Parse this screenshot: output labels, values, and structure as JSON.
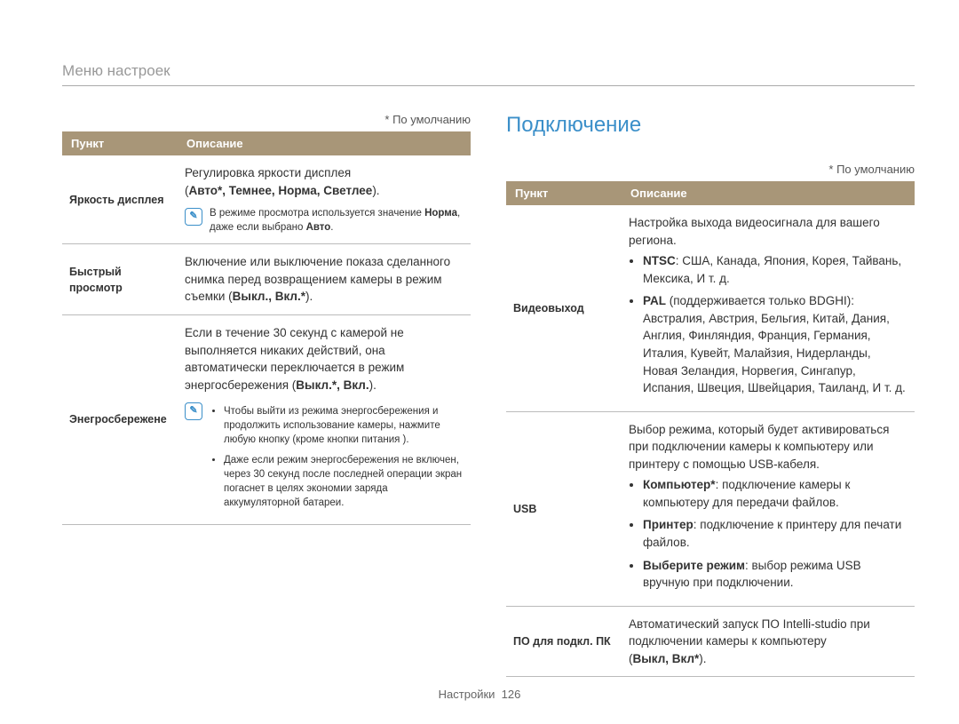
{
  "breadcrumb": "Меню настроек",
  "default_note": "* По умолчанию",
  "col_item": "Пункт",
  "col_desc": "Описание",
  "footer_label": "Настройки",
  "footer_page": "126",
  "left_table": {
    "rows": [
      {
        "label": "Яркость дисплея",
        "desc_intro": "Регулировка яркости дисплея",
        "desc_options_prefix": "(",
        "desc_options": "Авто*, Темнее, Норма, Светлее",
        "desc_options_suffix": ").",
        "note": "В режиме просмотра используется значение ",
        "note_bold1": "Норма",
        "note_mid": ", даже если выбрано ",
        "note_bold2": "Авто",
        "note_end": "."
      },
      {
        "label": "Быстрый просмотр",
        "desc": "Включение или выключение показа сделанного снимка перед возвращением камеры в режим съемки (",
        "desc_bold": "Выкл., Вкл.*",
        "desc_suffix": ")."
      },
      {
        "label": "Энегросбережене",
        "desc_intro": "Если в течение 30 секунд с камерой не выполняется никаких действий, она автоматически переключается в режим энергосбережения (",
        "desc_bold": "Выкл.*, Вкл.",
        "desc_suffix": ").",
        "note_items": [
          "Чтобы выйти из режима энергосбережения и продолжить использование камеры, нажмите любую кнопку (кроме кнопки питания ).",
          "Даже если режим энергосбережения не включен, через 30 секунд после последней операции экран погаснет в целях экономии заряда аккумуляторной батареи."
        ]
      }
    ]
  },
  "right_section": {
    "title": "Подключение",
    "rows": [
      {
        "label": "Видеовыход",
        "desc_intro": "Настройка выхода видеосигнала для вашего региона.",
        "bullets": [
          {
            "bold": "NTSC",
            "text": ": США, Канада, Япония, Корея, Тайвань, Мексика, И т. д."
          },
          {
            "bold": "PAL",
            "paren": " (поддерживается только BDGHI)",
            "text": ": Австралия, Австрия, Бельгия, Китай, Дания, Англия, Финляндия, Франция, Германия, Италия, Кувейт, Малайзия, Нидерланды, Новая Зеландия, Норвегия, Сингапур, Испания, Швеция, Швейцария, Таиланд, И т. д."
          }
        ]
      },
      {
        "label": "USB",
        "desc_intro": "Выбор режима, который будет активироваться при подключении камеры к компьютеру или принтеру с помощью USB-кабеля.",
        "bullets2": [
          {
            "bold": "Компьютер*",
            "text": ": подключение камеры к компьютеру для передачи файлов."
          },
          {
            "bold": "Принтер",
            "text": ": подключение к принтеру для печати файлов."
          },
          {
            "bold": "Выберите режим",
            "text": ": выбор режима USB вручную при подключении."
          }
        ]
      },
      {
        "label": "ПО для подкл. ПК",
        "desc": "Автоматический запуск ПО Intelli-studio при подключении камеры к компьютеру",
        "desc_options_prefix": "(",
        "desc_options": "Выкл, Вкл*",
        "desc_options_suffix": ")."
      }
    ]
  }
}
